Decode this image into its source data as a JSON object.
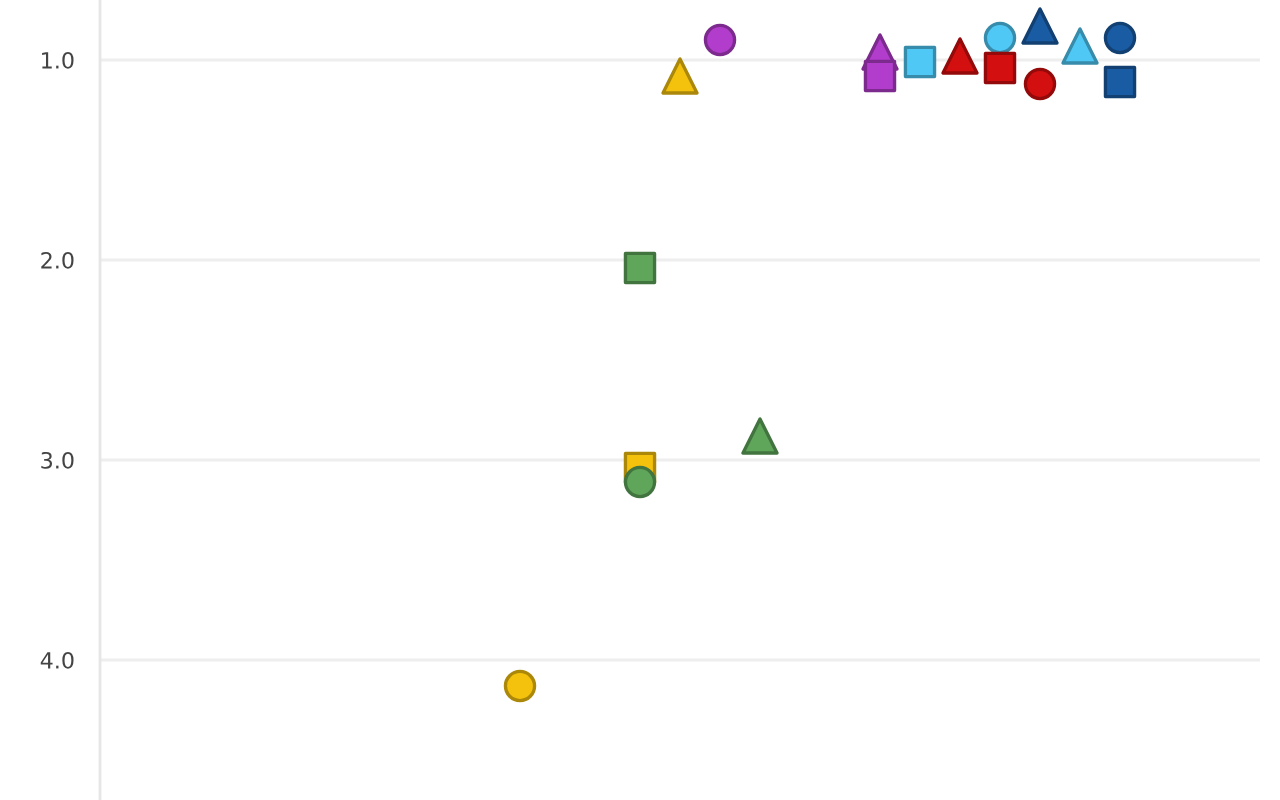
{
  "chart_data": {
    "type": "scatter",
    "categories": [
      null,
      null,
      null,
      null,
      null,
      null,
      null,
      null,
      null,
      null,
      null,
      null,
      null,
      null,
      null,
      null,
      null,
      null,
      null,
      null,
      null,
      null,
      null,
      null,
      null,
      null,
      null,
      null,
      null
    ],
    "ylim": [
      4.7,
      0.7
    ],
    "yticks": [
      {
        "value": 1,
        "label": "1.0"
      },
      {
        "value": 2,
        "label": "2.0"
      },
      {
        "value": 3,
        "label": "3.0"
      },
      {
        "value": 4,
        "label": "4.0"
      }
    ],
    "grid": "y",
    "tick_labels": "y",
    "series": [
      {
        "color": "#f4c20d",
        "marker": "circle",
        "values": [
          null,
          null,
          null,
          null,
          null,
          null,
          null,
          null,
          null,
          null,
          4.13,
          null,
          null,
          null,
          null,
          null,
          null,
          null,
          null,
          null,
          null,
          null,
          null,
          null,
          null,
          null,
          null,
          null,
          null
        ]
      },
      {
        "color": "#f4c20d",
        "marker": "square",
        "values": [
          null,
          null,
          null,
          null,
          null,
          null,
          null,
          null,
          null,
          null,
          null,
          null,
          null,
          3.04,
          null,
          null,
          null,
          null,
          null,
          null,
          null,
          null,
          null,
          null,
          null,
          null,
          null,
          null,
          null
        ]
      },
      {
        "color": "#f4c20d",
        "marker": "triangle",
        "values": [
          null,
          null,
          null,
          null,
          null,
          null,
          null,
          null,
          null,
          null,
          null,
          null,
          null,
          null,
          1.08,
          null,
          null,
          null,
          null,
          null,
          null,
          null,
          null,
          null,
          null,
          null,
          null,
          null,
          null
        ]
      },
      {
        "color": "#5fa55a",
        "marker": "square",
        "values": [
          null,
          null,
          null,
          null,
          null,
          null,
          null,
          null,
          null,
          null,
          null,
          null,
          null,
          2.04,
          null,
          null,
          null,
          null,
          null,
          null,
          null,
          null,
          null,
          null,
          null,
          null,
          null,
          null,
          null
        ]
      },
      {
        "color": "#5fa55a",
        "marker": "circle",
        "values": [
          null,
          null,
          null,
          null,
          null,
          null,
          null,
          null,
          null,
          null,
          null,
          null,
          null,
          3.11,
          null,
          null,
          null,
          null,
          null,
          null,
          null,
          null,
          null,
          null,
          null,
          null,
          null,
          null,
          null
        ]
      },
      {
        "color": "#5fa55a",
        "marker": "triangle",
        "values": [
          null,
          null,
          null,
          null,
          null,
          null,
          null,
          null,
          null,
          null,
          null,
          null,
          null,
          null,
          null,
          null,
          2.88,
          null,
          null,
          null,
          null,
          null,
          null,
          null,
          null,
          null,
          null,
          null,
          null
        ]
      },
      {
        "color": "#b23ccc",
        "marker": "circle",
        "values": [
          null,
          null,
          null,
          null,
          null,
          null,
          null,
          null,
          null,
          null,
          null,
          null,
          null,
          null,
          null,
          0.9,
          null,
          null,
          null,
          null,
          null,
          null,
          null,
          null,
          null,
          null,
          null,
          null,
          null
        ]
      },
      {
        "color": "#b23ccc",
        "marker": "triangle",
        "values": [
          null,
          null,
          null,
          null,
          null,
          null,
          null,
          null,
          null,
          null,
          null,
          null,
          null,
          null,
          null,
          null,
          null,
          null,
          null,
          0.96,
          null,
          null,
          null,
          null,
          null,
          null,
          null,
          null,
          null
        ]
      },
      {
        "color": "#b23ccc",
        "marker": "square",
        "values": [
          null,
          null,
          null,
          null,
          null,
          null,
          null,
          null,
          null,
          null,
          null,
          null,
          null,
          null,
          null,
          null,
          null,
          null,
          null,
          1.08,
          null,
          null,
          null,
          null,
          null,
          null,
          null,
          null,
          null
        ]
      },
      {
        "color": "#4fc8f5",
        "marker": "square",
        "values": [
          null,
          null,
          null,
          null,
          null,
          null,
          null,
          null,
          null,
          null,
          null,
          null,
          null,
          null,
          null,
          null,
          null,
          null,
          null,
          null,
          1.01,
          null,
          null,
          null,
          null,
          null,
          null,
          null,
          null
        ]
      },
      {
        "color": "#4fc8f5",
        "marker": "circle",
        "values": [
          null,
          null,
          null,
          null,
          null,
          null,
          null,
          null,
          null,
          null,
          null,
          null,
          null,
          null,
          null,
          null,
          null,
          null,
          null,
          null,
          null,
          null,
          0.89,
          null,
          null,
          null,
          null,
          null,
          null
        ]
      },
      {
        "color": "#4fc8f5",
        "marker": "triangle",
        "values": [
          null,
          null,
          null,
          null,
          null,
          null,
          null,
          null,
          null,
          null,
          null,
          null,
          null,
          null,
          null,
          null,
          null,
          null,
          null,
          null,
          null,
          null,
          null,
          null,
          0.93,
          null,
          null,
          null,
          null
        ]
      },
      {
        "color": "#d40f0f",
        "marker": "triangle",
        "values": [
          null,
          null,
          null,
          null,
          null,
          null,
          null,
          null,
          null,
          null,
          null,
          null,
          null,
          null,
          null,
          null,
          null,
          null,
          null,
          null,
          null,
          0.98,
          null,
          null,
          null,
          null,
          null,
          null,
          null
        ]
      },
      {
        "color": "#d40f0f",
        "marker": "square",
        "values": [
          null,
          null,
          null,
          null,
          null,
          null,
          null,
          null,
          null,
          null,
          null,
          null,
          null,
          null,
          null,
          null,
          null,
          null,
          null,
          null,
          null,
          null,
          1.04,
          null,
          null,
          null,
          null,
          null,
          null
        ]
      },
      {
        "color": "#d40f0f",
        "marker": "circle",
        "values": [
          null,
          null,
          null,
          null,
          null,
          null,
          null,
          null,
          null,
          null,
          null,
          null,
          null,
          null,
          null,
          null,
          null,
          null,
          null,
          null,
          null,
          null,
          null,
          1.12,
          null,
          null,
          null,
          null,
          null
        ]
      },
      {
        "color": "#1a5ca3",
        "marker": "triangle",
        "values": [
          null,
          null,
          null,
          null,
          null,
          null,
          null,
          null,
          null,
          null,
          null,
          null,
          null,
          null,
          null,
          null,
          null,
          null,
          null,
          null,
          null,
          null,
          null,
          0.83,
          null,
          null,
          null,
          null,
          null
        ]
      },
      {
        "color": "#1a5ca3",
        "marker": "circle",
        "values": [
          null,
          null,
          null,
          null,
          null,
          null,
          null,
          null,
          null,
          null,
          null,
          null,
          null,
          null,
          null,
          null,
          null,
          null,
          null,
          null,
          null,
          null,
          null,
          null,
          null,
          0.89,
          null,
          null,
          null
        ]
      },
      {
        "color": "#1a5ca3",
        "marker": "square",
        "values": [
          null,
          null,
          null,
          null,
          null,
          null,
          null,
          null,
          null,
          null,
          null,
          null,
          null,
          null,
          null,
          null,
          null,
          null,
          null,
          null,
          null,
          null,
          null,
          null,
          null,
          1.11,
          null,
          null,
          null
        ]
      }
    ]
  }
}
